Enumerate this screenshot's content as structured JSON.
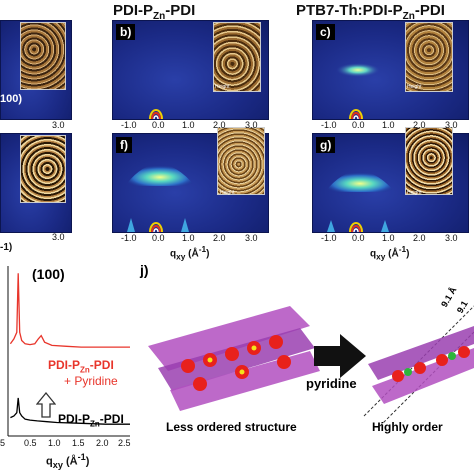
{
  "titles": {
    "middle": {
      "main": "PDI-P",
      "sub": "Zn",
      "tail": "-PDI"
    },
    "right": {
      "main": "PTB7-Th:PDI-P",
      "sub": "Zn",
      "tail": "-PDI"
    }
  },
  "panels": {
    "b": "b)",
    "c": "c)",
    "f": "f)",
    "g": "g)",
    "j": "j)"
  },
  "left_partial": {
    "peak_label": "100)",
    "tick_3_top": "3.0",
    "tick_3_bottom": "3.0",
    "axis_fragment": "-1)"
  },
  "afm": {
    "height_label": "Height"
  },
  "gixd": {
    "x_ticks": [
      "-1.0",
      "0.0",
      "1.0",
      "2.0",
      "3.0"
    ],
    "x_axis": {
      "q": "q",
      "sub": "xy",
      "unit": "(Å",
      "sup": "-1",
      "close": ")"
    }
  },
  "plot_h": {
    "peak_label": "(100)",
    "series": [
      {
        "name_main": "PDI-P",
        "name_sub": "Zn",
        "name_tail": "-PDI",
        "extra": "+ Pyridine",
        "color": "#e8352b"
      },
      {
        "name_main": "PDI-P",
        "name_sub": "Zn",
        "name_tail": "-PDI",
        "extra": "",
        "color": "#000000"
      }
    ],
    "x_ticks": [
      "0.5",
      "1.0",
      "1.5",
      "2.0",
      "2.5"
    ],
    "x_label_fragment": "5",
    "x_axis": {
      "q": "q",
      "sub": "xy",
      "unit": "(Å",
      "sup": "-1",
      "close": ")"
    }
  },
  "chart_data": {
    "type": "line",
    "title": "",
    "xlabel": "qxy (Å-1)",
    "ylabel": "",
    "xlim": [
      0,
      2.5
    ],
    "series": [
      {
        "name": "PDI-PZn-PDI + Pyridine",
        "x": [
          0.05,
          0.12,
          0.18,
          0.21,
          0.24,
          0.28,
          0.35,
          0.45,
          0.55,
          0.62,
          0.68,
          0.75,
          0.9,
          1.2,
          1.5,
          1.8,
          2.1,
          2.5
        ],
        "y": [
          0.55,
          0.58,
          0.62,
          0.98,
          0.62,
          0.57,
          0.55,
          0.545,
          0.55,
          0.58,
          0.6,
          0.56,
          0.54,
          0.535,
          0.53,
          0.53,
          0.53,
          0.53
        ]
      },
      {
        "name": "PDI-PZn-PDI",
        "x": [
          0.05,
          0.12,
          0.18,
          0.21,
          0.24,
          0.28,
          0.35,
          0.45,
          0.6,
          0.8,
          1.0,
          1.5,
          2.0,
          2.5
        ],
        "y": [
          0.1,
          0.11,
          0.13,
          0.22,
          0.13,
          0.11,
          0.09,
          0.085,
          0.08,
          0.075,
          0.07,
          0.065,
          0.06,
          0.06
        ]
      }
    ]
  },
  "panel_j": {
    "arrow_label": "pyridine",
    "left_caption": "Less ordered structure",
    "right_caption": "Highly order",
    "dim1": "9.1 Å",
    "dim2": "9.1"
  }
}
